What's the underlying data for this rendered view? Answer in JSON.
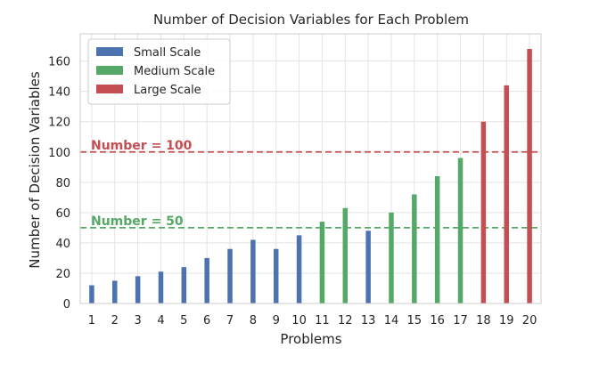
{
  "chart_data": {
    "type": "bar",
    "title": "Number of Decision Variables for Each Problem",
    "xlabel": "Problems",
    "ylabel": "Number of Decision Variables",
    "ylim": [
      0,
      178
    ],
    "yticks": [
      0,
      20,
      40,
      60,
      80,
      100,
      120,
      140,
      160
    ],
    "grid": true,
    "legend_position": "top-left",
    "categories": [
      "1",
      "2",
      "3",
      "4",
      "5",
      "6",
      "7",
      "8",
      "9",
      "10",
      "11",
      "12",
      "13",
      "14",
      "15",
      "16",
      "17",
      "18",
      "19",
      "20"
    ],
    "series": [
      {
        "name": "Small Scale",
        "color": "#4c72b0",
        "values": [
          12,
          15,
          18,
          21,
          24,
          30,
          36,
          42,
          36,
          45,
          null,
          null,
          48,
          null,
          null,
          null,
          null,
          null,
          null,
          null
        ]
      },
      {
        "name": "Medium Scale",
        "color": "#55a868",
        "values": [
          null,
          null,
          null,
          null,
          null,
          null,
          null,
          null,
          null,
          null,
          54,
          63,
          null,
          60,
          72,
          84,
          96,
          null,
          null,
          null
        ]
      },
      {
        "name": "Large Scale",
        "color": "#c44e52",
        "values": [
          null,
          null,
          null,
          null,
          null,
          null,
          null,
          null,
          null,
          null,
          null,
          null,
          null,
          null,
          null,
          null,
          null,
          120,
          144,
          168
        ]
      }
    ],
    "reference_lines": [
      {
        "value": 100,
        "label": "Number = 100",
        "color": "#c44e52",
        "style": "dashed"
      },
      {
        "value": 50,
        "label": "Number = 50",
        "color": "#55a868",
        "style": "dashed"
      }
    ]
  }
}
